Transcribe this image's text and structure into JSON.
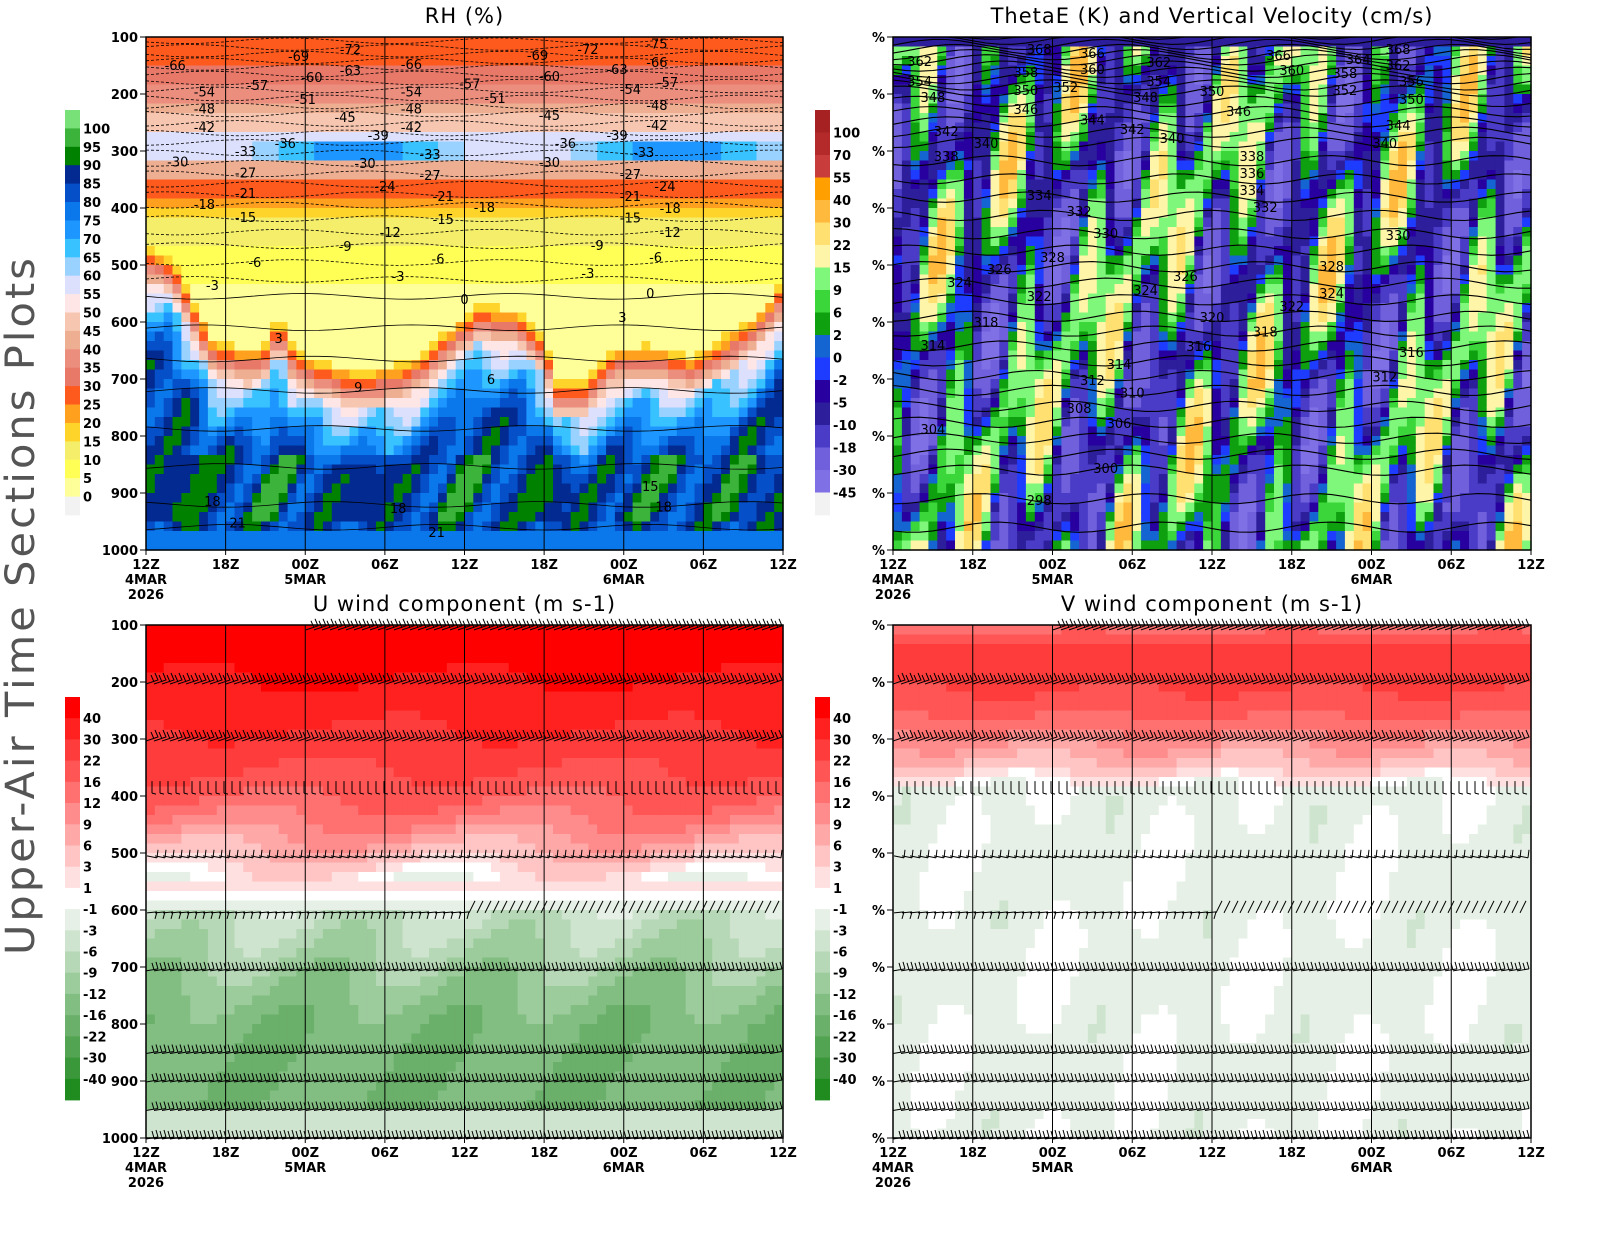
{
  "side_title": "Upper-Air Time Sections Plots",
  "chart_data": [
    {
      "type": "heatmap",
      "title": "RH (%)",
      "xlabel": "",
      "ylabel": "",
      "xlim_hours": [
        0,
        48
      ],
      "ylim": [
        100,
        1000
      ],
      "x_ticks": [
        "12Z",
        "18Z",
        "00Z",
        "06Z",
        "12Z",
        "18Z",
        "00Z",
        "06Z",
        "12Z"
      ],
      "x_sublabels": [
        [
          "4MAR",
          "2026"
        ],
        [],
        [
          "5MAR"
        ],
        [],
        [],
        [],
        [
          "6MAR"
        ],
        [],
        []
      ],
      "y_ticks": [
        "100",
        "200",
        "300",
        "400",
        "500",
        "600",
        "700",
        "800",
        "900",
        "1000"
      ],
      "colorbar": {
        "labels": [
          100,
          95,
          90,
          85,
          80,
          75,
          70,
          65,
          60,
          55,
          50,
          45,
          40,
          35,
          30,
          25,
          20,
          15,
          10,
          5,
          0
        ],
        "colors": [
          "#78e178",
          "#3cb43c",
          "#008200",
          "#022a90",
          "#0550c8",
          "#0a78eb",
          "#1e96ff",
          "#38c2ff",
          "#9ad2ff",
          "#dce0fc",
          "#fee6e6",
          "#f6c6b0",
          "#eeae92",
          "#ec8e7e",
          "#e87868",
          "#ff5a1e",
          "#ffa01e",
          "#ffd42a",
          "#f5ee6a",
          "#ffff55",
          "#ffff9a",
          "#f2f2f2"
        ]
      },
      "contour_field": "temperature (C)",
      "contour_labels": [
        {
          "text": "-66",
          "hour": 2.2,
          "hpa": 149
        },
        {
          "text": "-54",
          "hour": 4.4,
          "hpa": 196
        },
        {
          "text": "-57",
          "hour": 8.4,
          "hpa": 184
        },
        {
          "text": "-48",
          "hour": 4.4,
          "hpa": 225
        },
        {
          "text": "-42",
          "hour": 4.4,
          "hpa": 258
        },
        {
          "text": "-30",
          "hour": 2.4,
          "hpa": 318
        },
        {
          "text": "-33",
          "hour": 7.5,
          "hpa": 300
        },
        {
          "text": "-36",
          "hour": 10.5,
          "hpa": 286
        },
        {
          "text": "-27",
          "hour": 7.5,
          "hpa": 338
        },
        {
          "text": "-21",
          "hour": 7.5,
          "hpa": 374
        },
        {
          "text": "-18",
          "hour": 4.4,
          "hpa": 393
        },
        {
          "text": "-15",
          "hour": 7.5,
          "hpa": 416
        },
        {
          "text": "-6",
          "hour": 8.2,
          "hpa": 495
        },
        {
          "text": "-3",
          "hour": 5,
          "hpa": 535
        },
        {
          "text": "3",
          "hour": 10,
          "hpa": 628
        },
        {
          "text": "9",
          "hour": 16,
          "hpa": 714
        },
        {
          "text": "18",
          "hour": 5,
          "hpa": 914
        },
        {
          "text": "21",
          "hour": 6.9,
          "hpa": 952
        },
        {
          "text": "-69",
          "hour": 11.5,
          "hpa": 133
        },
        {
          "text": "-60",
          "hour": 12.5,
          "hpa": 170
        },
        {
          "text": "-51",
          "hour": 12,
          "hpa": 209
        },
        {
          "text": "-72",
          "hour": 15.4,
          "hpa": 121
        },
        {
          "text": "-63",
          "hour": 15.4,
          "hpa": 158
        },
        {
          "text": "-45",
          "hour": 15,
          "hpa": 240
        },
        {
          "text": "-39",
          "hour": 17.5,
          "hpa": 272
        },
        {
          "text": "-30",
          "hour": 16.5,
          "hpa": 321
        },
        {
          "text": "-24",
          "hour": 18,
          "hpa": 361
        },
        {
          "text": "-12",
          "hour": 18.4,
          "hpa": 442
        },
        {
          "text": "-9",
          "hour": 15,
          "hpa": 467
        },
        {
          "text": "-3",
          "hour": 19,
          "hpa": 519
        },
        {
          "text": "-66",
          "hour": 20,
          "hpa": 147
        },
        {
          "text": "-54",
          "hour": 20,
          "hpa": 196
        },
        {
          "text": "-48",
          "hour": 20,
          "hpa": 225
        },
        {
          "text": "-42",
          "hour": 20,
          "hpa": 258
        },
        {
          "text": "-33",
          "hour": 21.4,
          "hpa": 305
        },
        {
          "text": "-27",
          "hour": 21.4,
          "hpa": 342
        },
        {
          "text": "-21",
          "hour": 22.4,
          "hpa": 379
        },
        {
          "text": "-15",
          "hour": 22.4,
          "hpa": 419
        },
        {
          "text": "-6",
          "hour": 22,
          "hpa": 489
        },
        {
          "text": "0",
          "hour": 24,
          "hpa": 560
        },
        {
          "text": "-57",
          "hour": 24.4,
          "hpa": 182
        },
        {
          "text": "-51",
          "hour": 26.3,
          "hpa": 207
        },
        {
          "text": "-18",
          "hour": 25.5,
          "hpa": 398
        },
        {
          "text": "6",
          "hour": 26,
          "hpa": 700
        },
        {
          "text": "21",
          "hour": 21.9,
          "hpa": 968
        },
        {
          "text": "18",
          "hour": 19,
          "hpa": 926
        },
        {
          "text": "-69",
          "hour": 29.5,
          "hpa": 132
        },
        {
          "text": "-60",
          "hour": 30.4,
          "hpa": 168
        },
        {
          "text": "-45",
          "hour": 30.4,
          "hpa": 237
        },
        {
          "text": "-30",
          "hour": 30.4,
          "hpa": 319
        },
        {
          "text": "-36",
          "hour": 31.6,
          "hpa": 286
        },
        {
          "text": "-72",
          "hour": 33.3,
          "hpa": 121
        },
        {
          "text": "-63",
          "hour": 35.5,
          "hpa": 156
        },
        {
          "text": "-54",
          "hour": 36.5,
          "hpa": 191
        },
        {
          "text": "-39",
          "hour": 35.5,
          "hpa": 272
        },
        {
          "text": "-27",
          "hour": 36.5,
          "hpa": 340
        },
        {
          "text": "-21",
          "hour": 36.5,
          "hpa": 379
        },
        {
          "text": "-15",
          "hour": 36.5,
          "hpa": 417
        },
        {
          "text": "-9",
          "hour": 34,
          "hpa": 465
        },
        {
          "text": "-3",
          "hour": 33.3,
          "hpa": 514
        },
        {
          "text": "3",
          "hour": 35.9,
          "hpa": 591
        },
        {
          "text": "0",
          "hour": 38,
          "hpa": 549
        },
        {
          "text": "-6",
          "hour": 38.4,
          "hpa": 486
        },
        {
          "text": "-12",
          "hour": 39.5,
          "hpa": 442
        },
        {
          "text": "-18",
          "hour": 39.5,
          "hpa": 400
        },
        {
          "text": "-24",
          "hour": 39.1,
          "hpa": 361
        },
        {
          "text": "-33",
          "hour": 37.5,
          "hpa": 302
        },
        {
          "text": "-42",
          "hour": 38.5,
          "hpa": 254
        },
        {
          "text": "-48",
          "hour": 38.5,
          "hpa": 219
        },
        {
          "text": "-57",
          "hour": 39.3,
          "hpa": 179
        },
        {
          "text": "-66",
          "hour": 38.5,
          "hpa": 144
        },
        {
          "text": "-75",
          "hour": 38.5,
          "hpa": 111
        },
        {
          "text": "15",
          "hour": 38,
          "hpa": 888
        },
        {
          "text": "18",
          "hour": 39,
          "hpa": 924
        }
      ]
    },
    {
      "type": "heatmap",
      "title": "ThetaE (K) and Vertical Velocity (cm/s)",
      "xlabel": "",
      "ylabel": "",
      "xlim_hours": [
        0,
        48
      ],
      "ylim": [
        100,
        1000
      ],
      "x_ticks": [
        "12Z",
        "18Z",
        "00Z",
        "06Z",
        "12Z",
        "18Z",
        "00Z",
        "06Z",
        "12Z"
      ],
      "x_sublabels": [
        [
          "4MAR",
          "2026"
        ],
        [],
        [
          "5MAR"
        ],
        [],
        [],
        [],
        [
          "6MAR"
        ],
        [],
        []
      ],
      "y_ticks": [
        "%",
        "%",
        "%",
        "%",
        "%",
        "%",
        "%",
        "%",
        "%",
        "%"
      ],
      "colorbar": {
        "labels": [
          100,
          70,
          55,
          40,
          30,
          22,
          15,
          9,
          6,
          2,
          0,
          -2,
          -5,
          -10,
          -18,
          -30,
          -45
        ],
        "colors": [
          "#a62222",
          "#b42a2a",
          "#c83c3c",
          "#ff9f00",
          "#ffb93c",
          "#ffe070",
          "#fff5a8",
          "#7ff77a",
          "#3ad63a",
          "#0fa00f",
          "#1464d2",
          "#1e3cff",
          "#2800a0",
          "#2d1e9b",
          "#4b3cc8",
          "#7060dc",
          "#8070e6",
          "#f2f2f2"
        ]
      },
      "contour_field": "theta-e (K)",
      "contour_labels": [
        {
          "text": "362",
          "hour": 2,
          "hpa": 142
        },
        {
          "text": "354",
          "hour": 2,
          "hpa": 177
        },
        {
          "text": "348",
          "hour": 3,
          "hpa": 205
        },
        {
          "text": "342",
          "hour": 4,
          "hpa": 265
        },
        {
          "text": "338",
          "hour": 4,
          "hpa": 309
        },
        {
          "text": "340",
          "hour": 7,
          "hpa": 286
        },
        {
          "text": "368",
          "hour": 11,
          "hpa": 121
        },
        {
          "text": "358",
          "hour": 10,
          "hpa": 161
        },
        {
          "text": "350",
          "hour": 10,
          "hpa": 193
        },
        {
          "text": "352",
          "hour": 13,
          "hpa": 188
        },
        {
          "text": "346",
          "hour": 10,
          "hpa": 226
        },
        {
          "text": "366",
          "hour": 15,
          "hpa": 128
        },
        {
          "text": "360",
          "hour": 15,
          "hpa": 156
        },
        {
          "text": "344",
          "hour": 15,
          "hpa": 245
        },
        {
          "text": "342",
          "hour": 18,
          "hpa": 261
        },
        {
          "text": "362",
          "hour": 20,
          "hpa": 144
        },
        {
          "text": "354",
          "hour": 20,
          "hpa": 177
        },
        {
          "text": "348",
          "hour": 19,
          "hpa": 205
        },
        {
          "text": "340",
          "hour": 21,
          "hpa": 277
        },
        {
          "text": "350",
          "hour": 24,
          "hpa": 195
        },
        {
          "text": "346",
          "hour": 26,
          "hpa": 230
        },
        {
          "text": "366",
          "hour": 29,
          "hpa": 132
        },
        {
          "text": "360",
          "hour": 30,
          "hpa": 158
        },
        {
          "text": "364",
          "hour": 35,
          "hpa": 139
        },
        {
          "text": "368",
          "hour": 38,
          "hpa": 121
        },
        {
          "text": "362",
          "hour": 38,
          "hpa": 149
        },
        {
          "text": "358",
          "hour": 34,
          "hpa": 163
        },
        {
          "text": "352",
          "hour": 34,
          "hpa": 193
        },
        {
          "text": "356",
          "hour": 39,
          "hpa": 177
        },
        {
          "text": "350",
          "hour": 39,
          "hpa": 209
        },
        {
          "text": "344",
          "hour": 38,
          "hpa": 254
        },
        {
          "text": "340",
          "hour": 37,
          "hpa": 286
        },
        {
          "text": "338",
          "hour": 27,
          "hpa": 309
        },
        {
          "text": "336",
          "hour": 27,
          "hpa": 339
        },
        {
          "text": "334",
          "hour": 27,
          "hpa": 368
        },
        {
          "text": "332",
          "hour": 28,
          "hpa": 398
        },
        {
          "text": "334",
          "hour": 11,
          "hpa": 377
        },
        {
          "text": "332",
          "hour": 14,
          "hpa": 405
        },
        {
          "text": "330",
          "hour": 16,
          "hpa": 444
        },
        {
          "text": "330",
          "hour": 38,
          "hpa": 447
        },
        {
          "text": "328",
          "hour": 12,
          "hpa": 486
        },
        {
          "text": "326",
          "hour": 8,
          "hpa": 507
        },
        {
          "text": "324",
          "hour": 5,
          "hpa": 530
        },
        {
          "text": "326",
          "hour": 22,
          "hpa": 519
        },
        {
          "text": "324",
          "hour": 19,
          "hpa": 544
        },
        {
          "text": "328",
          "hour": 33,
          "hpa": 502
        },
        {
          "text": "324",
          "hour": 33,
          "hpa": 549
        },
        {
          "text": "322",
          "hour": 11,
          "hpa": 554
        },
        {
          "text": "322",
          "hour": 30,
          "hpa": 572
        },
        {
          "text": "320",
          "hour": 24,
          "hpa": 591
        },
        {
          "text": "318",
          "hour": 7,
          "hpa": 600
        },
        {
          "text": "318",
          "hour": 28,
          "hpa": 617
        },
        {
          "text": "316",
          "hour": 23,
          "hpa": 642
        },
        {
          "text": "316",
          "hour": 39,
          "hpa": 653
        },
        {
          "text": "314",
          "hour": 3,
          "hpa": 640
        },
        {
          "text": "314",
          "hour": 17,
          "hpa": 674
        },
        {
          "text": "312",
          "hour": 15,
          "hpa": 702
        },
        {
          "text": "312",
          "hour": 37,
          "hpa": 696
        },
        {
          "text": "310",
          "hour": 18,
          "hpa": 724
        },
        {
          "text": "308",
          "hour": 14,
          "hpa": 751
        },
        {
          "text": "306",
          "hour": 17,
          "hpa": 777
        },
        {
          "text": "304",
          "hour": 3,
          "hpa": 788
        },
        {
          "text": "300",
          "hour": 16,
          "hpa": 856
        },
        {
          "text": "298",
          "hour": 11,
          "hpa": 912
        }
      ]
    },
    {
      "type": "heatmap",
      "title": "U wind component (m s-1)",
      "xlabel": "",
      "ylabel": "",
      "xlim_hours": [
        0,
        48
      ],
      "ylim": [
        100,
        1000
      ],
      "x_ticks": [
        "12Z",
        "18Z",
        "00Z",
        "06Z",
        "12Z",
        "18Z",
        "00Z",
        "06Z",
        "12Z"
      ],
      "x_sublabels": [
        [
          "4MAR",
          "2026"
        ],
        [],
        [
          "5MAR"
        ],
        [],
        [],
        [],
        [
          "6MAR"
        ],
        [],
        []
      ],
      "y_ticks": [
        "100",
        "200",
        "300",
        "400",
        "500",
        "600",
        "700",
        "800",
        "900",
        "1000"
      ],
      "colorbar": {
        "labels": [
          40,
          30,
          22,
          16,
          12,
          9,
          6,
          3,
          1,
          -1,
          -3,
          -6,
          -9,
          -12,
          -16,
          -22,
          -30,
          -40
        ],
        "colors": [
          "#ff0000",
          "#ff2020",
          "#ff3c3c",
          "#ff5555",
          "#ff7070",
          "#ff8c8c",
          "#ffa8a8",
          "#ffc4c4",
          "#ffe0e0",
          "#ffffff",
          "#e6f0e6",
          "#cfe4cf",
          "#b6d8b6",
          "#9ccb9c",
          "#82be82",
          "#6aaf6a",
          "#52a452",
          "#3a983a",
          "#208c20"
        ]
      },
      "barb_levels_hpa": [
        105,
        200,
        300,
        395,
        505,
        605,
        705,
        850,
        900,
        950,
        1000
      ]
    },
    {
      "type": "heatmap",
      "title": "V wind component (m s-1)",
      "xlabel": "",
      "ylabel": "",
      "xlim_hours": [
        0,
        48
      ],
      "ylim": [
        100,
        1000
      ],
      "x_ticks": [
        "12Z",
        "18Z",
        "00Z",
        "06Z",
        "12Z",
        "18Z",
        "00Z",
        "06Z",
        "12Z"
      ],
      "x_sublabels": [
        [
          "4MAR",
          "2026"
        ],
        [],
        [
          "5MAR"
        ],
        [],
        [],
        [],
        [
          "6MAR"
        ],
        [],
        []
      ],
      "y_ticks": [
        "%",
        "%",
        "%",
        "%",
        "%",
        "%",
        "%",
        "%",
        "%",
        "%"
      ],
      "colorbar": {
        "labels": [
          40,
          30,
          22,
          16,
          12,
          9,
          6,
          3,
          1,
          -1,
          -3,
          -6,
          -9,
          -12,
          -16,
          -22,
          -30,
          -40
        ],
        "colors": [
          "#ff0000",
          "#ff2020",
          "#ff3c3c",
          "#ff5555",
          "#ff7070",
          "#ff8c8c",
          "#ffa8a8",
          "#ffc4c4",
          "#ffe0e0",
          "#ffffff",
          "#e6f0e6",
          "#cfe4cf",
          "#b6d8b6",
          "#9ccb9c",
          "#82be82",
          "#6aaf6a",
          "#52a452",
          "#3a983a",
          "#208c20"
        ]
      },
      "barb_levels_hpa": [
        105,
        200,
        300,
        395,
        505,
        605,
        705,
        850,
        900,
        950,
        1000
      ]
    }
  ]
}
